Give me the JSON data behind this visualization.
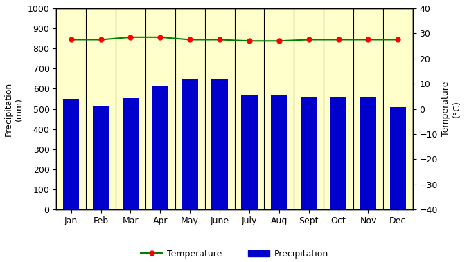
{
  "months": [
    "Jan",
    "Feb",
    "Mar",
    "Apr",
    "May",
    "June",
    "July",
    "Aug",
    "Sept",
    "Oct",
    "Nov",
    "Dec"
  ],
  "precipitation": [
    550,
    515,
    555,
    615,
    650,
    650,
    570,
    572,
    558,
    558,
    560,
    508
  ],
  "temperature": [
    27.5,
    27.5,
    28.5,
    28.5,
    27.5,
    27.5,
    27.0,
    27.0,
    27.5,
    27.5,
    27.5,
    27.5
  ],
  "bar_color": "#0000CC",
  "line_color": "#008000",
  "marker_color": "#FF0000",
  "bg_color": "#FFFFCC",
  "ylim_precip": [
    0,
    1000
  ],
  "ylim_temp": [
    -40,
    40
  ],
  "yticks_precip": [
    0,
    100,
    200,
    300,
    400,
    500,
    600,
    700,
    800,
    900,
    1000
  ],
  "yticks_temp": [
    -40,
    -30,
    -20,
    -10,
    0,
    10,
    20,
    30,
    40
  ],
  "ylabel_left": "Precipitation\n(mm)",
  "ylabel_right": "Temperature\n(°C)",
  "legend_temp": "Temperature",
  "legend_precip": "Precipitation"
}
